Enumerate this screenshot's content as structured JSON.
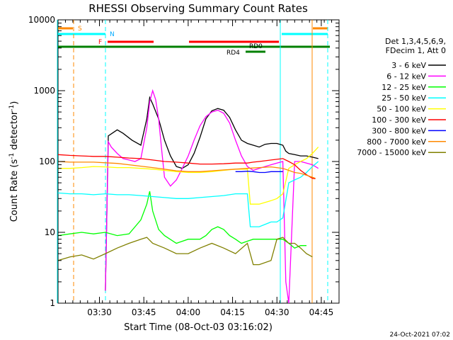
{
  "chart_data": {
    "type": "line",
    "title": "RHESSI Observing Summary Count Rates",
    "xlabel": "Start Time (08-Oct-03 03:16:02)",
    "ylabel_main": "Count Rate (s",
    "ylabel_sup1": "-1",
    "ylabel_mid": " detector",
    "ylabel_sup2": "-1",
    "ylabel_end": ")",
    "yscale": "log",
    "ylim": [
      1,
      10000
    ],
    "xlim_minutes": [
      0,
      95
    ],
    "y_ticks": [
      {
        "value": 1,
        "label": "1"
      },
      {
        "value": 10,
        "label": "10"
      },
      {
        "value": 100,
        "label": "100"
      },
      {
        "value": 1000,
        "label": "1000"
      },
      {
        "value": 10000,
        "label": "10000"
      }
    ],
    "x_ticks": [
      {
        "minutes": 14,
        "label": "03:30"
      },
      {
        "minutes": 29,
        "label": "03:45"
      },
      {
        "minutes": 44,
        "label": "04:00"
      },
      {
        "minutes": 59,
        "label": "04:15"
      },
      {
        "minutes": 74,
        "label": "04:30"
      },
      {
        "minutes": 89,
        "label": "04:45"
      }
    ],
    "legend_header": [
      "Det 1,3,4,5,6,9,",
      "FDecim 1, Att 0"
    ],
    "series": [
      {
        "name": "3 - 6 keV",
        "color": "#000000",
        "points": [
          [
            16,
            1.5
          ],
          [
            17,
            230
          ],
          [
            20,
            280
          ],
          [
            22,
            250
          ],
          [
            25,
            200
          ],
          [
            28,
            170
          ],
          [
            30,
            400
          ],
          [
            31,
            800
          ],
          [
            32,
            650
          ],
          [
            34,
            400
          ],
          [
            36,
            200
          ],
          [
            38,
            120
          ],
          [
            40,
            85
          ],
          [
            42,
            80
          ],
          [
            44,
            90
          ],
          [
            46,
            130
          ],
          [
            48,
            220
          ],
          [
            50,
            400
          ],
          [
            52,
            520
          ],
          [
            54,
            560
          ],
          [
            56,
            530
          ],
          [
            58,
            420
          ],
          [
            60,
            280
          ],
          [
            62,
            200
          ],
          [
            64,
            180
          ],
          [
            66,
            170
          ],
          [
            68,
            160
          ],
          [
            70,
            175
          ],
          [
            72,
            180
          ],
          [
            74,
            180
          ],
          [
            76,
            170
          ],
          [
            77,
            140
          ],
          [
            78,
            130
          ],
          [
            80,
            125
          ],
          [
            82,
            120
          ],
          [
            84,
            120
          ],
          [
            86,
            115
          ],
          [
            88,
            110
          ]
        ]
      },
      {
        "name": "6 - 12 keV",
        "color": "#ff00ff",
        "points": [
          [
            16,
            1.5
          ],
          [
            17,
            190
          ],
          [
            18,
            160
          ],
          [
            20,
            130
          ],
          [
            22,
            110
          ],
          [
            24,
            105
          ],
          [
            26,
            100
          ],
          [
            28,
            110
          ],
          [
            30,
            300
          ],
          [
            31,
            700
          ],
          [
            32,
            1000
          ],
          [
            33,
            750
          ],
          [
            34,
            400
          ],
          [
            35,
            150
          ],
          [
            36,
            60
          ],
          [
            38,
            45
          ],
          [
            40,
            55
          ],
          [
            42,
            80
          ],
          [
            44,
            120
          ],
          [
            46,
            200
          ],
          [
            48,
            320
          ],
          [
            50,
            430
          ],
          [
            52,
            500
          ],
          [
            54,
            530
          ],
          [
            56,
            480
          ],
          [
            58,
            350
          ],
          [
            60,
            200
          ],
          [
            62,
            120
          ],
          [
            64,
            85
          ],
          [
            66,
            75
          ],
          [
            68,
            80
          ],
          [
            70,
            85
          ],
          [
            72,
            90
          ],
          [
            74,
            95
          ],
          [
            76,
            100
          ],
          [
            77,
            2
          ],
          [
            78,
            1
          ],
          [
            80,
            100
          ],
          [
            82,
            100
          ],
          [
            84,
            95
          ],
          [
            86,
            90
          ],
          [
            88,
            80
          ]
        ]
      },
      {
        "name": "12 - 25 keV",
        "color": "#00ff00",
        "points": [
          [
            0,
            9
          ],
          [
            4,
            9.5
          ],
          [
            8,
            10
          ],
          [
            12,
            9.5
          ],
          [
            16,
            10
          ],
          [
            20,
            9
          ],
          [
            24,
            9.5
          ],
          [
            28,
            15
          ],
          [
            30,
            25
          ],
          [
            31,
            38
          ],
          [
            32,
            20
          ],
          [
            34,
            11
          ],
          [
            36,
            9
          ],
          [
            40,
            7
          ],
          [
            44,
            8
          ],
          [
            48,
            8
          ],
          [
            50,
            9
          ],
          [
            52,
            11
          ],
          [
            54,
            12
          ],
          [
            56,
            11
          ],
          [
            58,
            9
          ],
          [
            60,
            8
          ],
          [
            62,
            7
          ],
          [
            64,
            7.5
          ],
          [
            66,
            8
          ],
          [
            68,
            8
          ],
          [
            70,
            8
          ],
          [
            72,
            8
          ],
          [
            74,
            8
          ],
          [
            76,
            8
          ],
          [
            78,
            7
          ],
          [
            80,
            6
          ],
          [
            82,
            6.5
          ],
          [
            84,
            6.5
          ]
        ]
      },
      {
        "name": "25 - 50 keV",
        "color": "#00ffff",
        "points": [
          [
            0,
            36
          ],
          [
            4,
            35
          ],
          [
            8,
            35
          ],
          [
            12,
            34
          ],
          [
            16,
            35
          ],
          [
            20,
            34
          ],
          [
            24,
            34
          ],
          [
            28,
            33
          ],
          [
            32,
            32
          ],
          [
            36,
            31
          ],
          [
            40,
            30
          ],
          [
            44,
            30
          ],
          [
            48,
            31
          ],
          [
            52,
            32
          ],
          [
            56,
            33
          ],
          [
            60,
            35
          ],
          [
            64,
            35
          ],
          [
            65,
            12
          ],
          [
            68,
            12
          ],
          [
            72,
            14
          ],
          [
            74,
            14
          ],
          [
            76,
            16
          ],
          [
            78,
            50
          ],
          [
            80,
            55
          ],
          [
            82,
            60
          ],
          [
            84,
            70
          ],
          [
            86,
            85
          ],
          [
            88,
            100
          ]
        ]
      },
      {
        "name": "50 - 100 keV",
        "color": "#ffff00",
        "points": [
          [
            0,
            80
          ],
          [
            4,
            80
          ],
          [
            8,
            82
          ],
          [
            12,
            85
          ],
          [
            16,
            84
          ],
          [
            20,
            82
          ],
          [
            24,
            82
          ],
          [
            28,
            80
          ],
          [
            32,
            78
          ],
          [
            36,
            75
          ],
          [
            40,
            72
          ],
          [
            44,
            70
          ],
          [
            48,
            70
          ],
          [
            52,
            72
          ],
          [
            56,
            75
          ],
          [
            60,
            78
          ],
          [
            64,
            78
          ],
          [
            65,
            25
          ],
          [
            68,
            25
          ],
          [
            72,
            28
          ],
          [
            74,
            30
          ],
          [
            76,
            35
          ],
          [
            78,
            80
          ],
          [
            80,
            90
          ],
          [
            82,
            100
          ],
          [
            84,
            110
          ],
          [
            86,
            130
          ],
          [
            88,
            160
          ]
        ]
      },
      {
        "name": "100 - 300 keV",
        "color": "#ff0000",
        "points": [
          [
            0,
            125
          ],
          [
            4,
            122
          ],
          [
            8,
            120
          ],
          [
            12,
            118
          ],
          [
            16,
            118
          ],
          [
            20,
            115
          ],
          [
            24,
            112
          ],
          [
            28,
            110
          ],
          [
            32,
            105
          ],
          [
            36,
            100
          ],
          [
            40,
            98
          ],
          [
            44,
            95
          ],
          [
            48,
            92
          ],
          [
            52,
            92
          ],
          [
            56,
            93
          ],
          [
            60,
            95
          ],
          [
            64,
            95
          ],
          [
            66,
            98
          ],
          [
            68,
            100
          ],
          [
            72,
            105
          ],
          [
            76,
            110
          ],
          [
            78,
            100
          ],
          [
            80,
            90
          ],
          [
            82,
            75
          ],
          [
            84,
            65
          ],
          [
            86,
            58
          ],
          [
            87,
            57
          ]
        ]
      },
      {
        "name": "300 - 800 keV",
        "color": "#0000ff",
        "points": [
          [
            60,
            72
          ],
          [
            62,
            72
          ],
          [
            64,
            73
          ],
          [
            66,
            72
          ],
          [
            68,
            70
          ],
          [
            70,
            70
          ],
          [
            72,
            72
          ],
          [
            74,
            72
          ],
          [
            76,
            72
          ]
        ]
      },
      {
        "name": "800 - 7000 keV",
        "color": "#ff8800",
        "points": [
          [
            0,
            100
          ],
          [
            4,
            98
          ],
          [
            8,
            98
          ],
          [
            12,
            98
          ],
          [
            16,
            96
          ],
          [
            20,
            94
          ],
          [
            24,
            90
          ],
          [
            28,
            86
          ],
          [
            32,
            82
          ],
          [
            36,
            78
          ],
          [
            40,
            74
          ],
          [
            44,
            72
          ],
          [
            48,
            72
          ],
          [
            52,
            74
          ],
          [
            56,
            76
          ],
          [
            60,
            78
          ],
          [
            64,
            80
          ],
          [
            68,
            82
          ],
          [
            72,
            84
          ],
          [
            76,
            80
          ],
          [
            78,
            75
          ],
          [
            80,
            70
          ],
          [
            82,
            68
          ],
          [
            84,
            64
          ],
          [
            86,
            60
          ],
          [
            87,
            58
          ]
        ]
      },
      {
        "name": "7000 - 15000 keV",
        "color": "#808000",
        "points": [
          [
            0,
            4
          ],
          [
            4,
            4.5
          ],
          [
            8,
            4.8
          ],
          [
            12,
            4.2
          ],
          [
            16,
            5
          ],
          [
            20,
            6
          ],
          [
            24,
            7
          ],
          [
            28,
            8
          ],
          [
            30,
            8.5
          ],
          [
            32,
            7
          ],
          [
            36,
            6
          ],
          [
            40,
            5
          ],
          [
            44,
            5
          ],
          [
            48,
            6
          ],
          [
            52,
            7
          ],
          [
            56,
            6
          ],
          [
            60,
            5
          ],
          [
            64,
            7
          ],
          [
            66,
            3.5
          ],
          [
            68,
            3.5
          ],
          [
            72,
            4
          ],
          [
            74,
            8
          ],
          [
            76,
            8.5
          ],
          [
            78,
            7
          ],
          [
            80,
            7
          ],
          [
            82,
            6
          ],
          [
            84,
            5
          ],
          [
            86,
            4.5
          ]
        ]
      }
    ],
    "markers": [
      {
        "label": "S",
        "color": "#ff8800",
        "style": "dashed",
        "x": 6
      },
      {
        "label": "N",
        "color": "#00ffff",
        "style": "dashed",
        "x": 16
      },
      {
        "label": "F",
        "color": "#ff0000"
      },
      {
        "label": "RD0",
        "color": "#ff0000"
      },
      {
        "label": "RD4",
        "color": "#008000"
      }
    ],
    "timestamp": "24-Oct-2021 07:02"
  }
}
